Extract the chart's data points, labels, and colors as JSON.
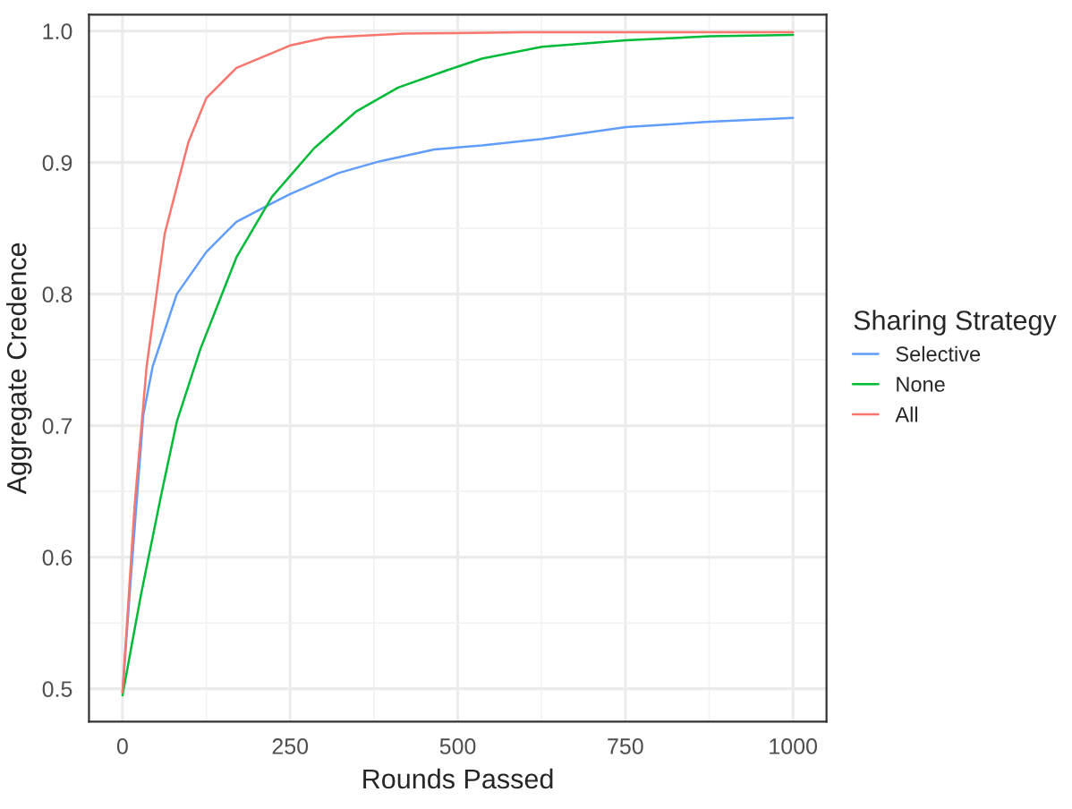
{
  "chart_data": {
    "type": "line",
    "xlabel": "Rounds Passed",
    "ylabel": "Aggregate Credence",
    "legend_title": "Sharing Strategy",
    "legend": "right",
    "grid": true,
    "line_style": "solid",
    "marker": "none",
    "xlim": [
      -50,
      1050
    ],
    "ylim": [
      0.475,
      1.0125
    ],
    "xticks": [
      0,
      250,
      500,
      750,
      1000
    ],
    "yticks": [
      {
        "value": 0.5,
        "label": "0.5"
      },
      {
        "value": 0.6,
        "label": "0.6"
      },
      {
        "value": 0.7,
        "label": "0.7"
      },
      {
        "value": 0.8,
        "label": "0.8"
      },
      {
        "value": 0.9,
        "label": "0.9"
      },
      {
        "value": 1.0,
        "label": "1.0"
      }
    ],
    "series": [
      {
        "name": "Selective",
        "color": "#619cff",
        "x": [
          0,
          13,
          31,
          45,
          81,
          125,
          170,
          223,
          250,
          322,
          384,
          465,
          536,
          626,
          751,
          876,
          1000
        ],
        "values": [
          0.497,
          0.588,
          0.708,
          0.745,
          0.8,
          0.832,
          0.855,
          0.869,
          0.876,
          0.892,
          0.901,
          0.91,
          0.913,
          0.918,
          0.927,
          0.931,
          0.934
        ]
      },
      {
        "name": "None",
        "color": "#00ba38",
        "x": [
          0,
          27,
          58,
          81,
          116,
          170,
          223,
          286,
          349,
          411,
          483,
          536,
          626,
          751,
          876,
          1000
        ],
        "values": [
          0.495,
          0.57,
          0.648,
          0.703,
          0.758,
          0.828,
          0.874,
          0.911,
          0.939,
          0.957,
          0.97,
          0.979,
          0.988,
          0.993,
          0.996,
          0.997
        ]
      },
      {
        "name": "All",
        "color": "#f8766d",
        "x": [
          0,
          18,
          36,
          63,
          98,
          125,
          170,
          250,
          304,
          420,
          600,
          800,
          1000
        ],
        "values": [
          0.497,
          0.639,
          0.745,
          0.846,
          0.915,
          0.949,
          0.972,
          0.989,
          0.995,
          0.998,
          0.999,
          0.999,
          0.999
        ]
      }
    ]
  }
}
